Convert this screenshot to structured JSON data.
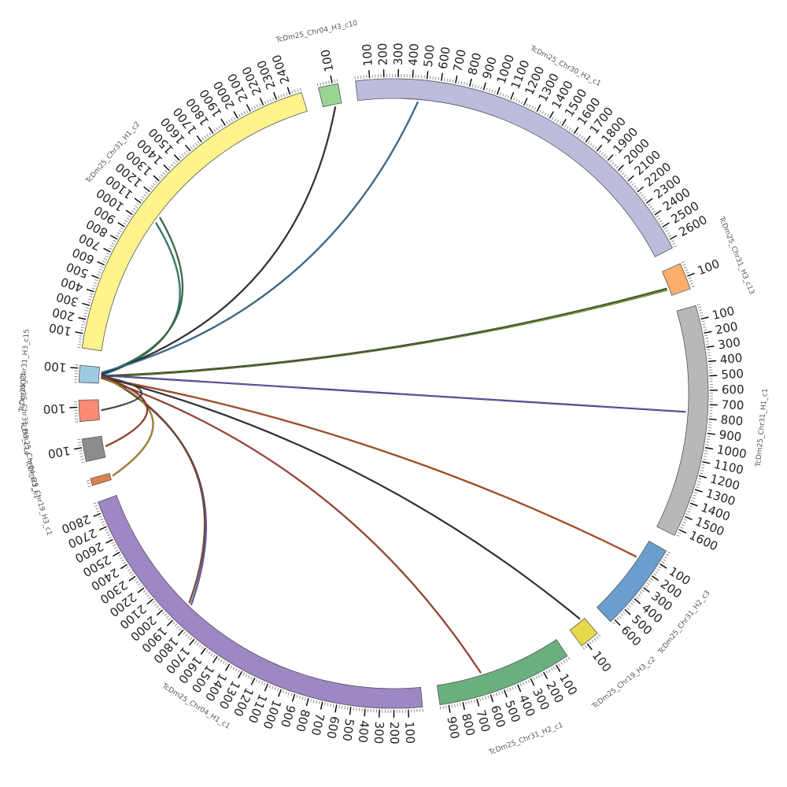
{
  "chart_data": {
    "type": "chord",
    "tick_step": 100,
    "segments": [
      {
        "name": "TcDm25_Chr31_H3_c15",
        "length": 120,
        "color": "#9ecae1"
      },
      {
        "name": "TcDm25_Chr31_H1_c2",
        "length": 2480,
        "color": "#fff38c"
      },
      {
        "name": "TcDm25_Chr04_H3_c10",
        "length": 140,
        "color": "#98d594"
      },
      {
        "name": "TcDm25_Chr30_H2_c1",
        "length": 2660,
        "color": "#bcbddc"
      },
      {
        "name": "TcDm25_Chr31_H3_c13",
        "length": 190,
        "color": "#fdae6b"
      },
      {
        "name": "TcDm25_Chr31_H1_c1",
        "length": 1650,
        "color": "#b8b8b8"
      },
      {
        "name": "TcDm25_Chr31_H2_c3",
        "length": 630,
        "color": "#6a9ecf"
      },
      {
        "name": "TcDm25_Chr19_H3_c2",
        "length": 140,
        "color": "#e6d94a"
      },
      {
        "name": "TcDm25_Chr31_H2_c1",
        "length": 960,
        "color": "#6ab07e"
      },
      {
        "name": "TcDm25_Chr04_H1_c1",
        "length": 2880,
        "color": "#9e87c5"
      },
      {
        "name": "TcDm25_Chr19_H3_c1",
        "length": 50,
        "color": "#e0804b"
      },
      {
        "name": "TcDm25_Chr04_H3_c1",
        "length": 160,
        "color": "#8c8c8c"
      },
      {
        "name": "TcDm25_Chr31_H3_c14",
        "length": 150,
        "color": "#fb8a72"
      }
    ],
    "links": [
      {
        "from": "TcDm25_Chr31_H3_c15",
        "to": "TcDm25_Chr31_H1_c2",
        "a": 60,
        "b": 1050,
        "color": "#2a9d8f"
      },
      {
        "from": "TcDm25_Chr31_H3_c15",
        "to": "TcDm25_Chr31_H1_c2",
        "a": 70,
        "b": 1100,
        "color": "#3b8b4b"
      },
      {
        "from": "TcDm25_Chr31_H3_c15",
        "to": "TcDm25_Chr04_H3_c10",
        "a": 70,
        "b": 90,
        "color": "#333333"
      },
      {
        "from": "TcDm25_Chr31_H3_c15",
        "to": "TcDm25_Chr30_H2_c1",
        "a": 80,
        "b": 450,
        "color": "#3182bd"
      },
      {
        "from": "TcDm25_Chr31_H3_c15",
        "to": "TcDm25_Chr31_H3_c13",
        "a": 50,
        "b": 140,
        "color": "#9acd32"
      },
      {
        "from": "TcDm25_Chr31_H3_c15",
        "to": "TcDm25_Chr31_H3_c13",
        "a": 55,
        "b": 130,
        "color": "#556b2f"
      },
      {
        "from": "TcDm25_Chr31_H3_c15",
        "to": "TcDm25_Chr31_H1_c1",
        "a": 60,
        "b": 760,
        "color": "#6a5acd"
      },
      {
        "from": "TcDm25_Chr31_H3_c15",
        "to": "TcDm25_Chr31_H2_c3",
        "a": 40,
        "b": 150,
        "color": "#e6550d"
      },
      {
        "from": "TcDm25_Chr31_H3_c15",
        "to": "TcDm25_Chr19_H3_c2",
        "a": 50,
        "b": 30,
        "color": "#333333"
      },
      {
        "from": "TcDm25_Chr31_H3_c15",
        "to": "TcDm25_Chr31_H2_c1",
        "a": 40,
        "b": 620,
        "color": "#d6452c"
      },
      {
        "from": "TcDm25_Chr31_H3_c15",
        "to": "TcDm25_Chr04_H1_c1",
        "a": 60,
        "b": 1880,
        "color": "#7b68ee"
      },
      {
        "from": "TcDm25_Chr31_H3_c15",
        "to": "TcDm25_Chr04_H1_c1",
        "a": 65,
        "b": 1900,
        "color": "#a0522d"
      },
      {
        "from": "TcDm25_Chr31_H3_c15",
        "to": "TcDm25_Chr19_H3_c1",
        "a": 45,
        "b": 25,
        "color": "#daa520"
      },
      {
        "from": "TcDm25_Chr31_H3_c15",
        "to": "TcDm25_Chr04_H3_c1",
        "a": 50,
        "b": 80,
        "color": "#cc4125"
      },
      {
        "from": "TcDm25_Chr31_H3_c15",
        "to": "TcDm25_Chr31_H3_c14",
        "a": 55,
        "b": 70,
        "color": "#555555"
      }
    ]
  }
}
